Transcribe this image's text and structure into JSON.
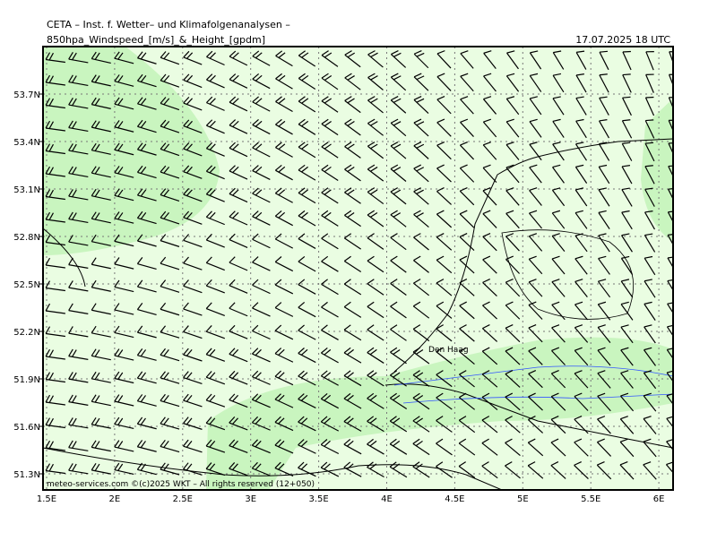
{
  "header": {
    "title": "CETA – Inst. f. Wetter– und Klimafolgenanalysen –",
    "product": "850hpa_Windspeed_[m/s]_&_Height_[gpdm]",
    "valid": "17.07.2025 18 UTC"
  },
  "map": {
    "lat_labels": [
      "53.7N",
      "53.4N",
      "53.1N",
      "52.8N",
      "52.5N",
      "52.2N",
      "51.9N",
      "51.6N",
      "51.3N"
    ],
    "lon_labels": [
      "1.5E",
      "2E",
      "2.5E",
      "3E",
      "3.5E",
      "4E",
      "4.5E",
      "5E",
      "5.5E",
      "6E"
    ],
    "place": "Den Haag",
    "footer": "meteo-services.com ©(c)2025 WKT – All rights reserved (12+050)"
  }
}
